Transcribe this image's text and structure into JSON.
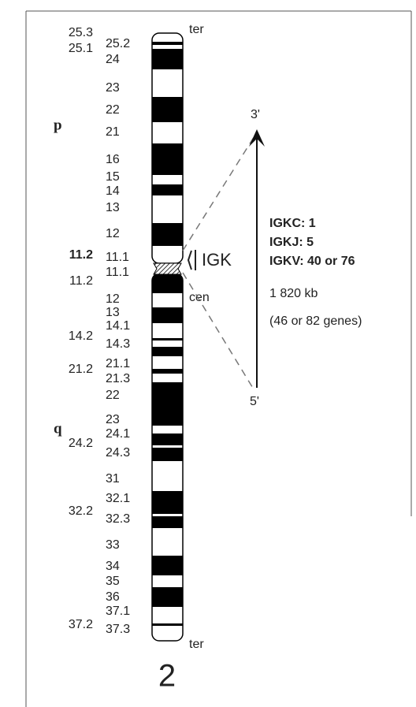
{
  "chromosome": {
    "number": "2",
    "arm_p": "p",
    "arm_q": "q",
    "top_end": "ter",
    "centromere": "cen",
    "bottom_end": "ter",
    "bands_outer": [
      "25.3",
      "25.1",
      "11.2",
      "11.2",
      "14.2",
      "21.2",
      "24.2",
      "32.2",
      "37.2"
    ],
    "bands_inner": [
      "25.2",
      "24",
      "23",
      "22",
      "21",
      "16",
      "15",
      "14",
      "13",
      "12",
      "11.1",
      "11.1",
      "12",
      "13",
      "14.1",
      "14.3",
      "21.1",
      "21.3",
      "22",
      "23",
      "24.1",
      "24.3",
      "31",
      "32.1",
      "32.3",
      "33",
      "34",
      "35",
      "36",
      "37.1",
      "37.3"
    ]
  },
  "locus": {
    "name": "IGK",
    "end_3": "3'",
    "end_5": "5'",
    "genes": [
      "IGKC: 1",
      "IGKJ: 5",
      "IGKV: 40 or 76"
    ],
    "size": "1 820 kb",
    "gene_count": "(46 or 82 genes)"
  }
}
